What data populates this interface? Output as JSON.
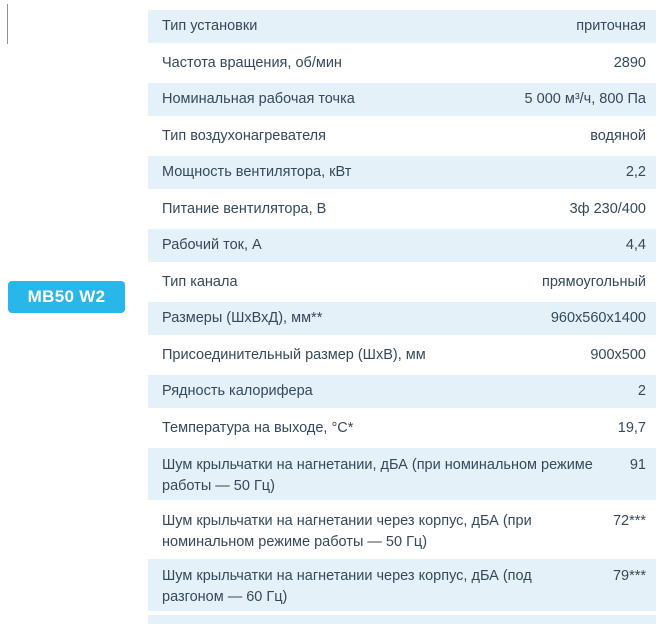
{
  "badge": {
    "label": "МВ50 W2",
    "bg_color": "#29b6e8",
    "text_color": "#ffffff"
  },
  "colors": {
    "row_alt_background": "#e4f1f8",
    "row_base_background": "#ffffff",
    "text": "#35495a"
  },
  "table": {
    "rows": [
      {
        "label": "Тип установки",
        "value": "приточная"
      },
      {
        "label": "Частота вращения, об/мин",
        "value": "2890"
      },
      {
        "label": "Номинальная рабочая точка",
        "value": "5 000 м³/ч, 800 Па"
      },
      {
        "label": "Тип воздухонагревателя",
        "value": "водяной"
      },
      {
        "label": "Мощность вентилятора, кВт",
        "value": "2,2"
      },
      {
        "label": "Питание вентилятора, В",
        "value": "3ф 230/400"
      },
      {
        "label": "Рабочий ток, А",
        "value": "4,4"
      },
      {
        "label": "Тип канала",
        "value": "прямоугольный"
      },
      {
        "label": "Размеры (ШхВхД), мм**",
        "value": "960х560х1400"
      },
      {
        "label": "Присоединительный размер (ШхВ), мм",
        "value": "900х500"
      },
      {
        "label": "Рядность калорифера",
        "value": "2"
      },
      {
        "label": "Температура на выходе, °С*",
        "value": "19,7"
      },
      {
        "label": "Шум крыльчатки на нагнетании, дБА (при номинальном режиме работы — 50 Гц)",
        "value": "91"
      },
      {
        "label": "Шум крыльчатки на нагнетании через корпус, дБА (при номинальном режиме работы — 50 Гц)",
        "value": "72***"
      },
      {
        "label": "Шум крыльчатки на нагнетании через корпус, дБА (под разгоном — 60 Гц)",
        "value": "79***"
      }
    ]
  }
}
